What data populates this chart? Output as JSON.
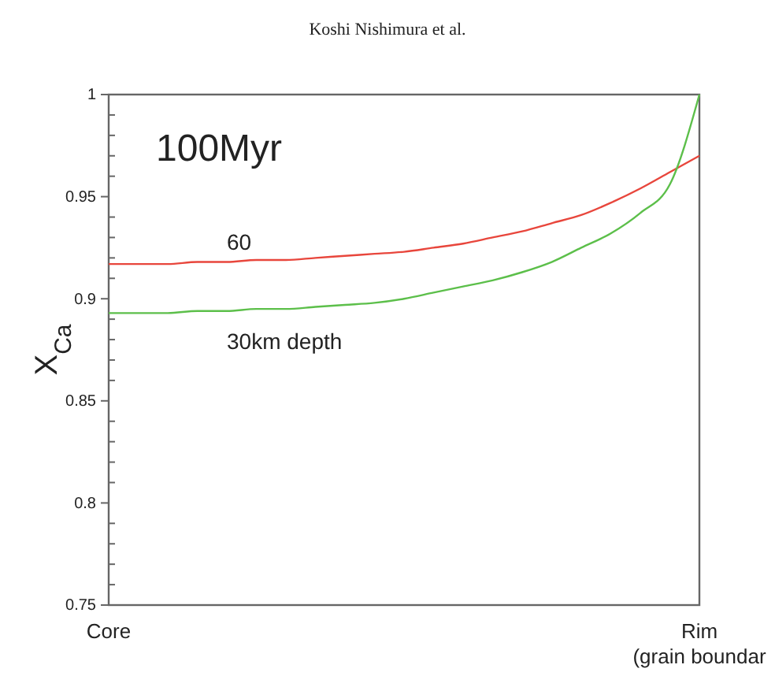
{
  "chart_data": {
    "type": "line",
    "ylabel": "X$_{Ca}$",
    "annotations": [
      "Koshi Nishimura et al.",
      "100Myr"
    ],
    "categories": [
      "Core",
      null,
      null,
      null,
      null,
      null,
      null,
      null,
      null,
      null,
      null,
      null,
      null,
      null,
      null,
      null,
      null,
      null,
      null,
      null,
      "Rim\n(grain boundar"
    ],
    "ylim": [
      0.75,
      1
    ],
    "yticks": [
      0.75,
      {
        "value": 0.76,
        "label": null
      },
      {
        "value": 0.77,
        "label": null
      },
      {
        "value": 0.78,
        "label": null
      },
      {
        "value": 0.79,
        "label": null
      },
      0.8,
      {
        "value": 0.81,
        "label": null
      },
      {
        "value": 0.82,
        "label": null
      },
      {
        "value": 0.83,
        "label": null
      },
      {
        "value": 0.84,
        "label": null
      },
      0.85,
      {
        "value": 0.86,
        "label": null
      },
      {
        "value": 0.87,
        "label": null
      },
      {
        "value": 0.88,
        "label": null
      },
      {
        "value": 0.89,
        "label": null
      },
      0.9,
      {
        "value": 0.91,
        "label": null
      },
      {
        "value": 0.92,
        "label": null
      },
      {
        "value": 0.93,
        "label": null
      },
      {
        "value": 0.94,
        "label": null
      },
      0.95,
      {
        "value": 0.96,
        "label": null
      },
      {
        "value": 0.97,
        "label": null
      },
      {
        "value": 0.98,
        "label": null
      },
      {
        "value": 0.99,
        "label": null
      },
      1
    ],
    "grid": false,
    "marker": "none",
    "line_style": "solid",
    "series": [
      {
        "name": "60",
        "color": "#e8463c",
        "values": [
          0.917,
          0.917,
          0.917,
          0.918,
          0.918,
          0.919,
          0.919,
          0.92,
          0.921,
          0.922,
          0.923,
          0.925,
          0.927,
          0.93,
          0.933,
          0.937,
          0.941,
          0.947,
          0.954,
          0.962,
          0.97
        ]
      },
      {
        "name": "30km depth",
        "color": "#5cbf4a",
        "values": [
          0.893,
          0.893,
          0.893,
          0.894,
          0.894,
          0.895,
          0.895,
          0.896,
          0.897,
          0.898,
          0.9,
          0.903,
          0.906,
          0.909,
          0.913,
          0.918,
          0.925,
          0.932,
          0.942,
          0.956,
          1.0
        ]
      }
    ]
  }
}
